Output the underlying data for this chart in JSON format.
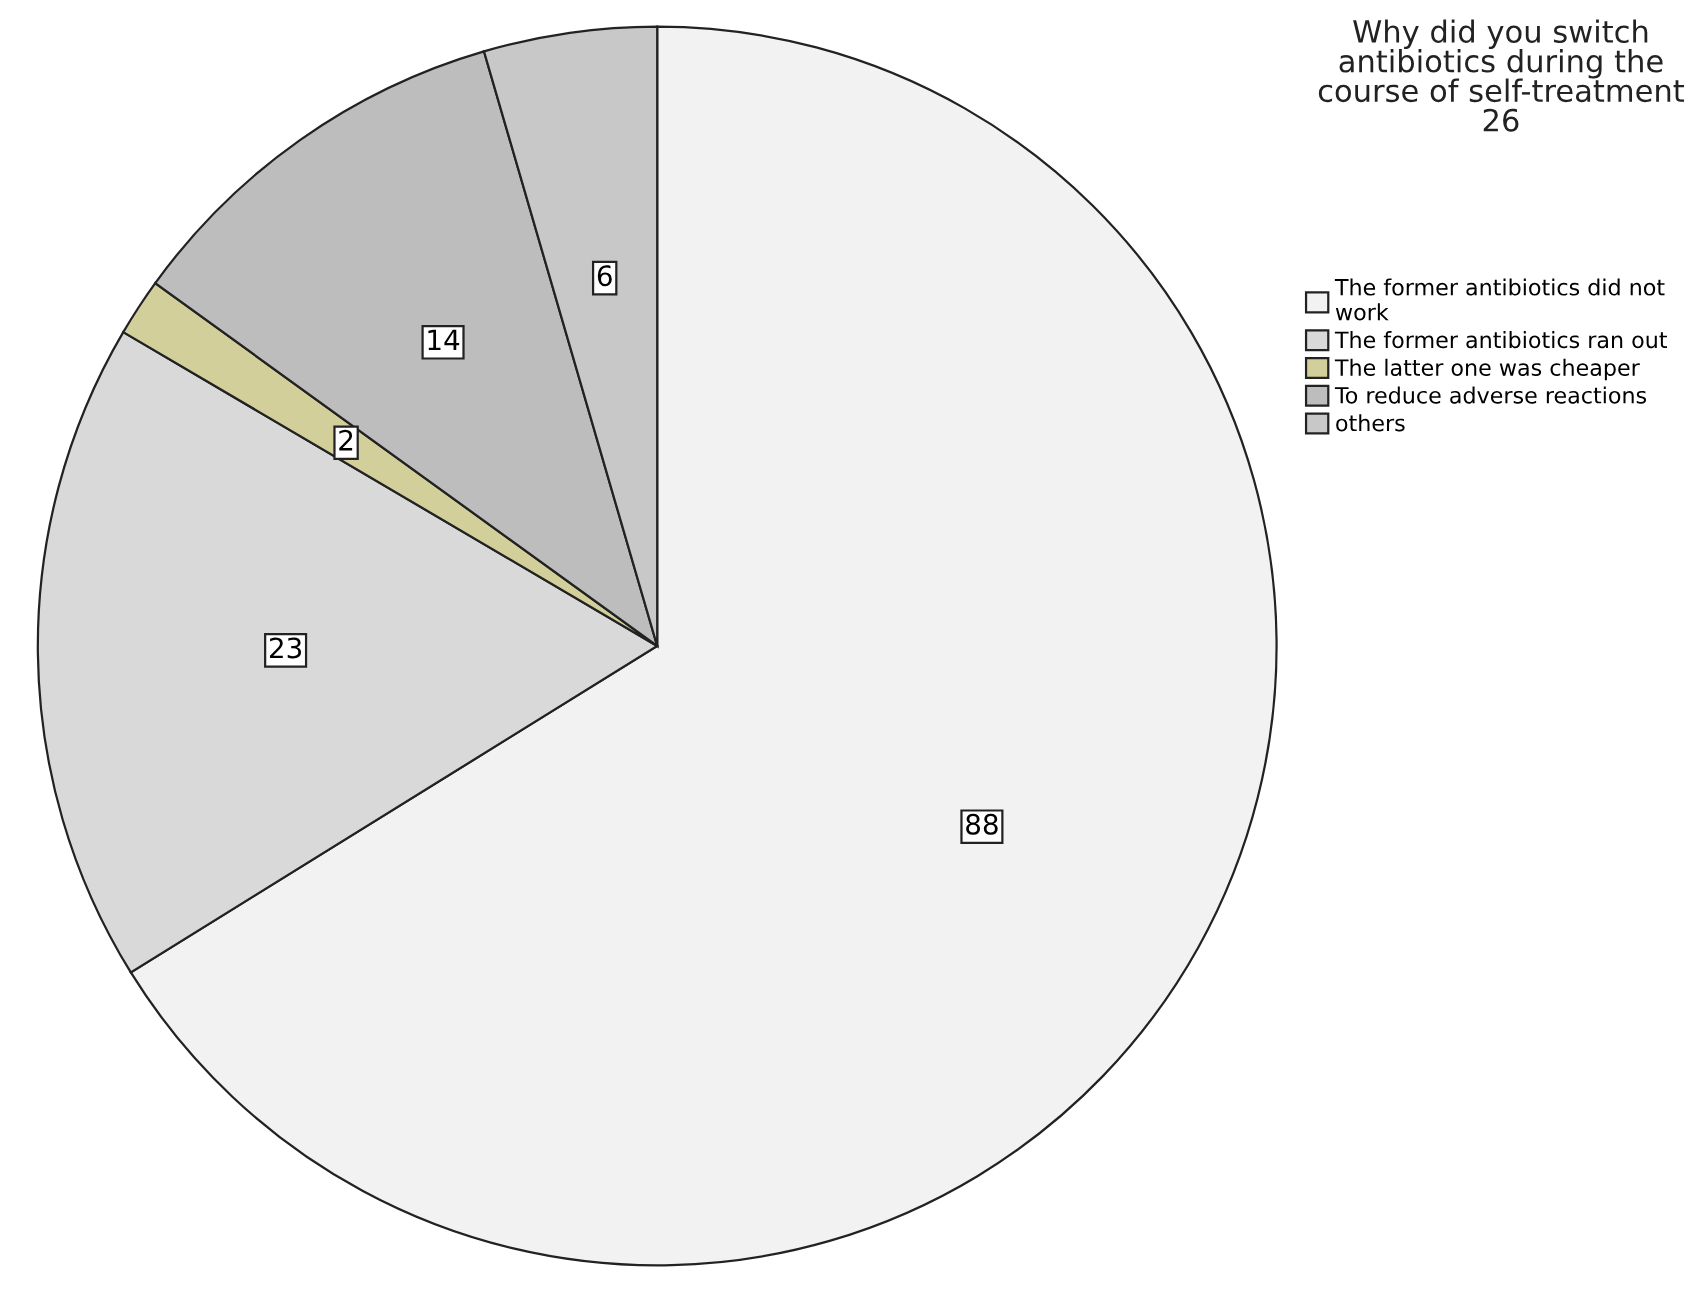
{
  "chart_data": {
    "type": "pie",
    "title": "Why did you switch\nantibiotics during the\ncourse of self-treatment\n26",
    "categories": [
      "The former antibiotics did not\nwork",
      "The former antibiotics ran out",
      "The latter one was cheaper",
      "To reduce adverse reactions",
      "others"
    ],
    "values": [
      88,
      23,
      2,
      14,
      6
    ],
    "colors": [
      "#f2f2f2",
      "#d9d9d9",
      "#d3cf9a",
      "#bdbdbd",
      "#c8c8c8"
    ],
    "data_labels": true,
    "legend": "top right"
  }
}
